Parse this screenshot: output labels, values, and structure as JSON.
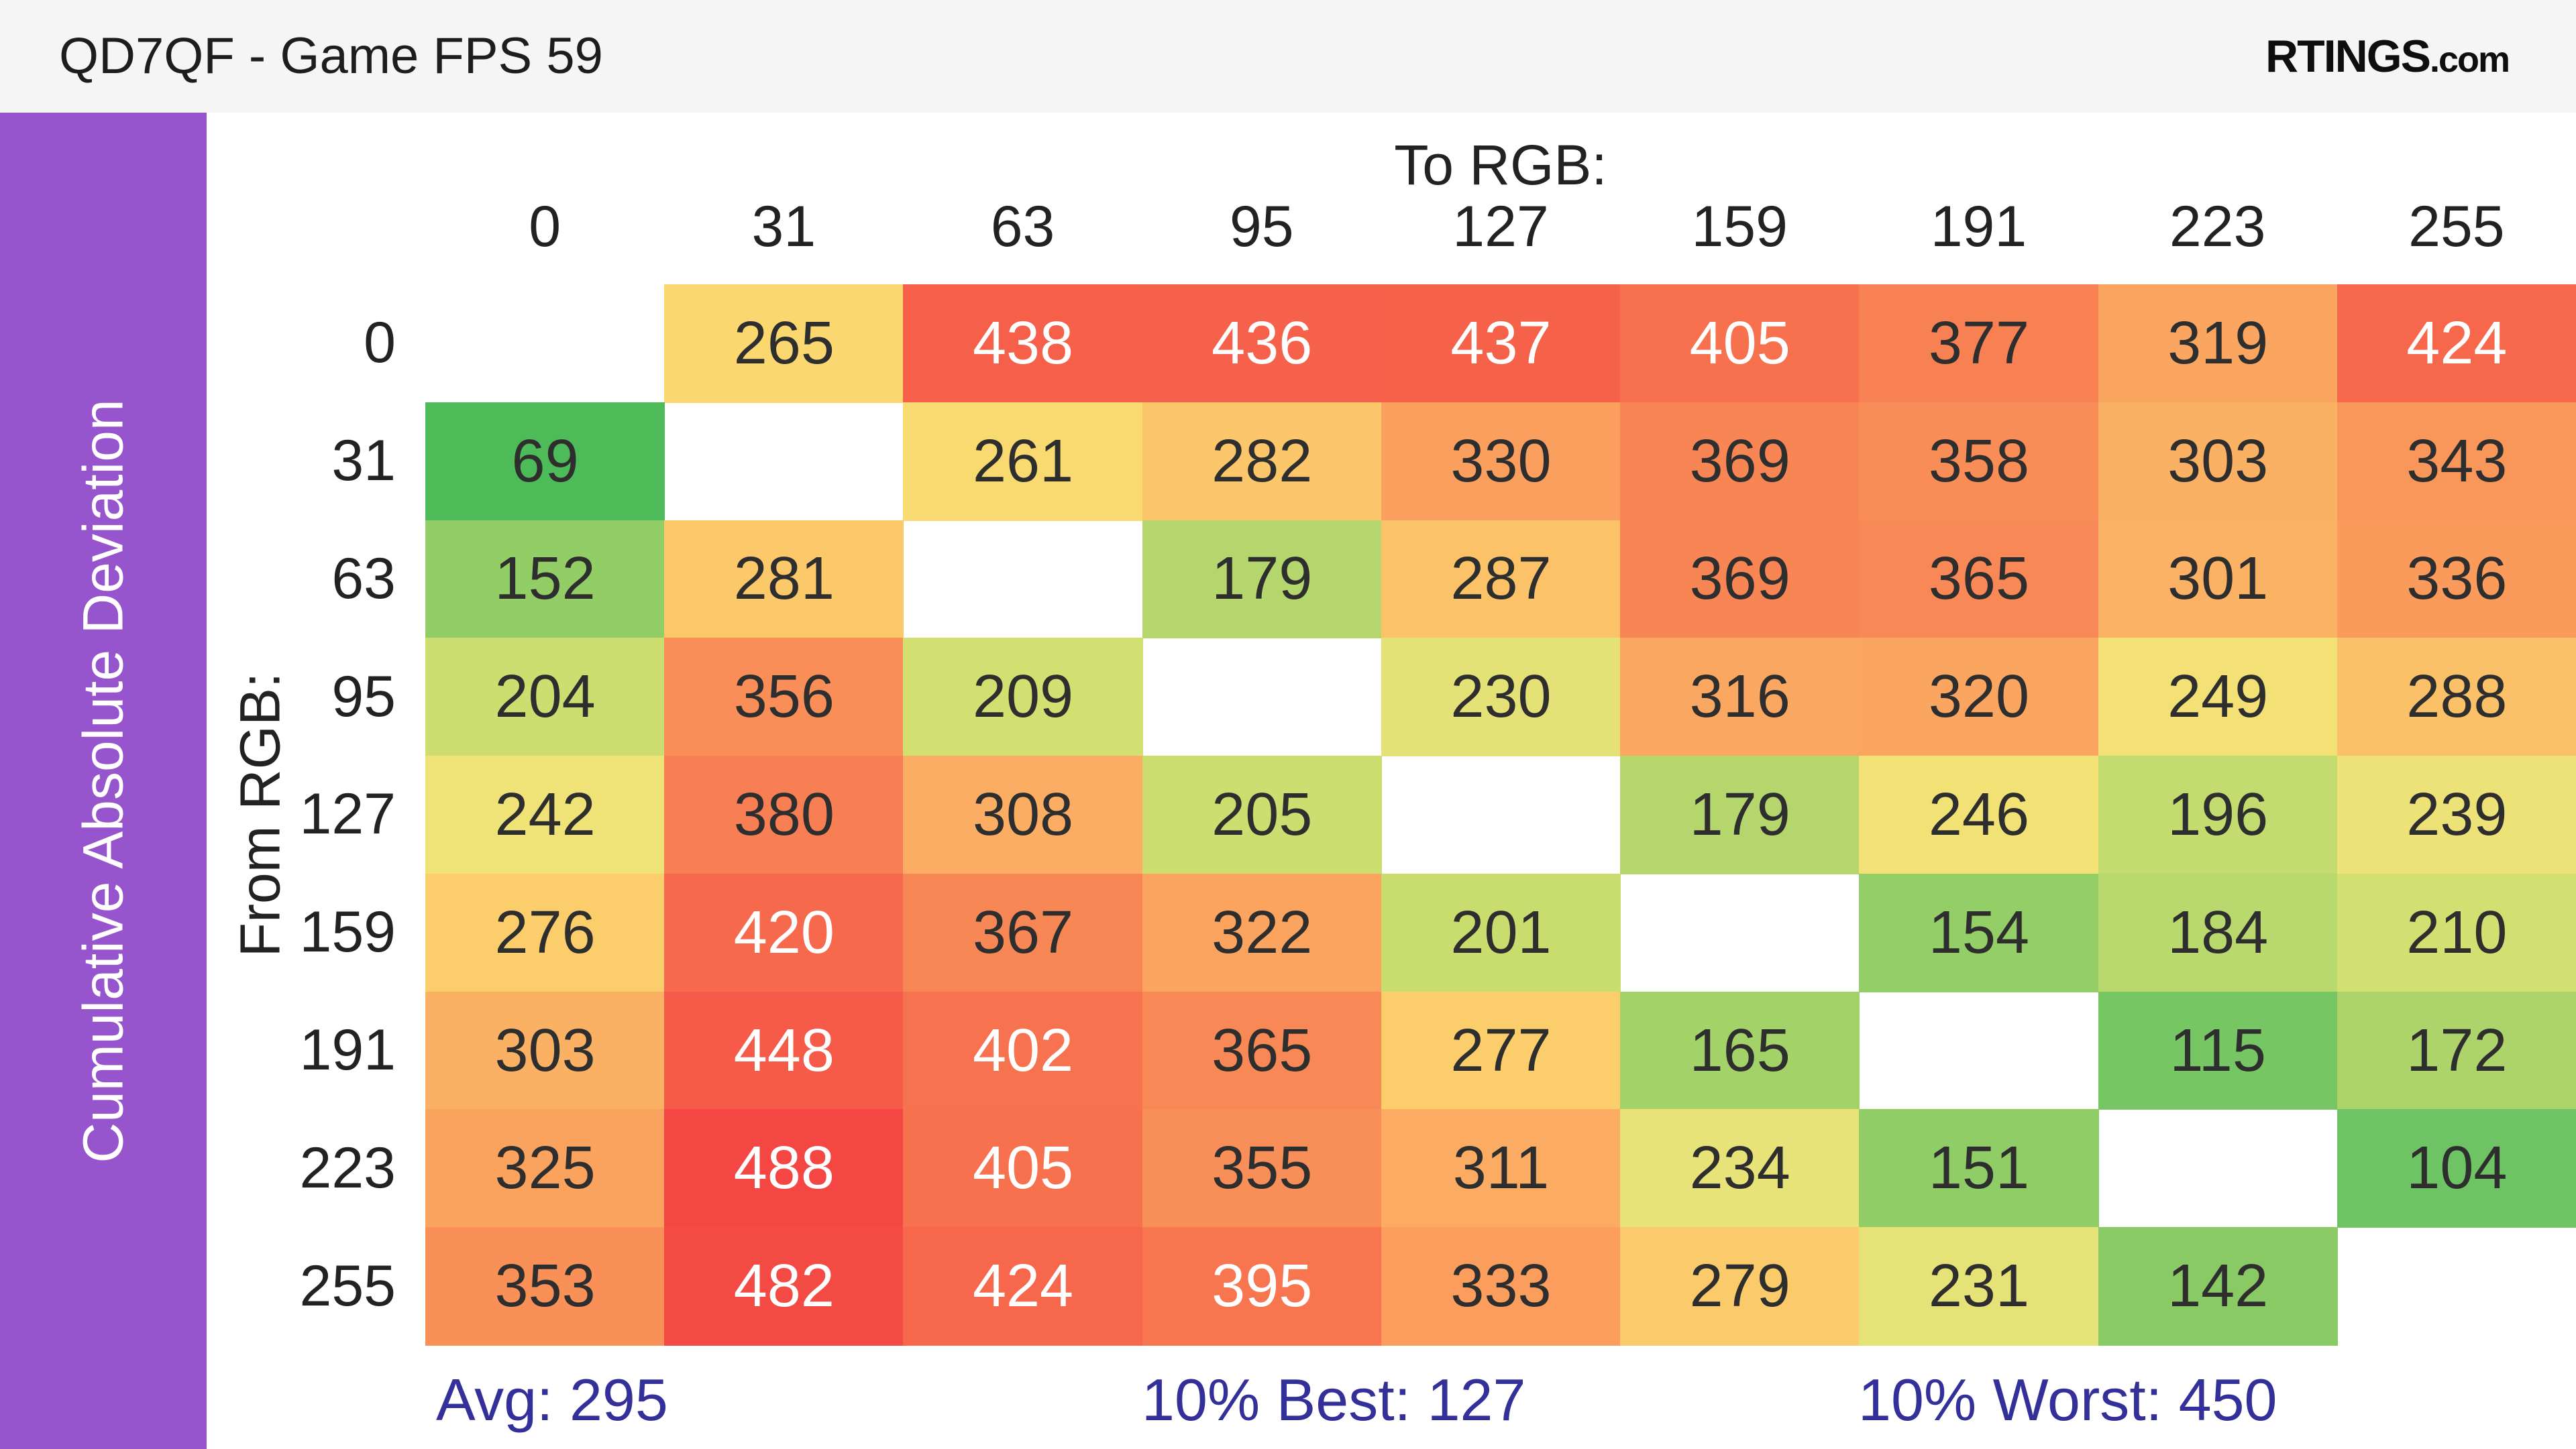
{
  "header": {
    "title": "QD7QF - Game FPS 59",
    "logo_main": "RTINGS",
    "logo_suffix": ".com"
  },
  "sidebar": {
    "label": "Cumulative Absolute Deviation"
  },
  "colors": {
    "sidebar_purple": "#9654cd",
    "topbar_bg": "#f5f5f6",
    "stats_text": "#33309a",
    "cell_text_dark": "#2e2e2e",
    "cell_text_light": "#ffffff",
    "diagonal_blank": "#ffffff"
  },
  "chart_data": {
    "type": "heatmap",
    "title": "QD7QF - Game FPS 59",
    "x_axis_label": "To RGB:",
    "y_axis_label": "From RGB:",
    "categories": [
      "0",
      "31",
      "63",
      "95",
      "127",
      "159",
      "191",
      "223",
      "255"
    ],
    "matrix": [
      [
        null,
        265,
        438,
        436,
        437,
        405,
        377,
        319,
        424
      ],
      [
        69,
        null,
        261,
        282,
        330,
        369,
        358,
        303,
        343
      ],
      [
        152,
        281,
        null,
        179,
        287,
        369,
        365,
        301,
        336
      ],
      [
        204,
        356,
        209,
        null,
        230,
        316,
        320,
        249,
        288
      ],
      [
        242,
        380,
        308,
        205,
        null,
        179,
        246,
        196,
        239
      ],
      [
        276,
        420,
        367,
        322,
        201,
        null,
        154,
        184,
        210
      ],
      [
        303,
        448,
        402,
        365,
        277,
        165,
        null,
        115,
        172
      ],
      [
        325,
        488,
        405,
        355,
        311,
        234,
        151,
        null,
        104
      ],
      [
        353,
        482,
        424,
        395,
        333,
        279,
        231,
        142,
        null
      ]
    ],
    "diagonal": "blank",
    "stats": {
      "avg": 295,
      "best_10pct": 127,
      "worst_10pct": 450,
      "avg_label": "Avg: 295",
      "best_label": "10% Best: 127",
      "worst_label": "10% Worst: 450"
    },
    "color_scale": [
      [
        65,
        "#49ba57"
      ],
      [
        105,
        "#6fc464"
      ],
      [
        145,
        "#8ccb64"
      ],
      [
        155,
        "#95ce67"
      ],
      [
        175,
        "#b0d56b"
      ],
      [
        210,
        "#d2e071"
      ],
      [
        235,
        "#e9e378"
      ],
      [
        250,
        "#f5e175"
      ],
      [
        270,
        "#fbd56d"
      ],
      [
        300,
        "#fbb365"
      ],
      [
        350,
        "#f99259"
      ],
      [
        400,
        "#f7734f"
      ],
      [
        440,
        "#f65f4a"
      ],
      [
        490,
        "#f44643"
      ]
    ],
    "text_white_threshold": 390,
    "value_range_observed": [
      69,
      488
    ],
    "legend": "off",
    "grid": "off"
  }
}
